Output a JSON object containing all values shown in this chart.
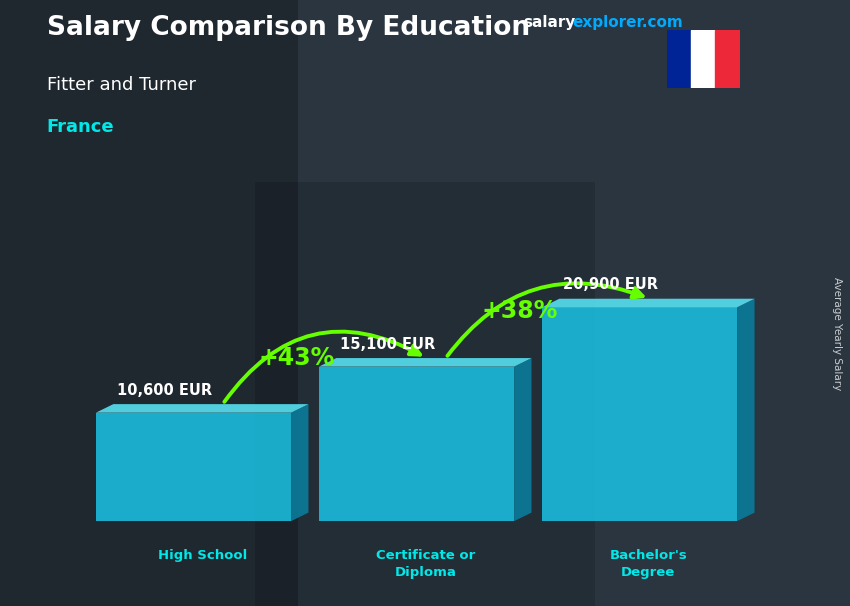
{
  "title": "Salary Comparison By Education",
  "subtitle_job": "Fitter and Turner",
  "subtitle_country": "France",
  "categories": [
    "High School",
    "Certificate or\nDiploma",
    "Bachelor's\nDegree"
  ],
  "values": [
    10600,
    15100,
    20900
  ],
  "value_labels": [
    "10,600 EUR",
    "15,100 EUR",
    "20,900 EUR"
  ],
  "bar_color_front": "#1ab8d8",
  "bar_color_top": "#55ddee",
  "bar_color_side": "#0a7a99",
  "pct_labels": [
    "+43%",
    "+38%"
  ],
  "bg_color": "#2a3540",
  "text_color_white": "#ffffff",
  "text_color_cyan": "#00e8e8",
  "text_color_green": "#66ff00",
  "arrow_color": "#66ff00",
  "axis_label_right": "Average Yearly Salary",
  "brand_salary": "salary",
  "brand_explorer": "explorer.com",
  "brand_color_salary": "#ffffff",
  "brand_color_explorer": "#00aaff",
  "fig_width": 8.5,
  "fig_height": 6.06,
  "dpi": 100
}
